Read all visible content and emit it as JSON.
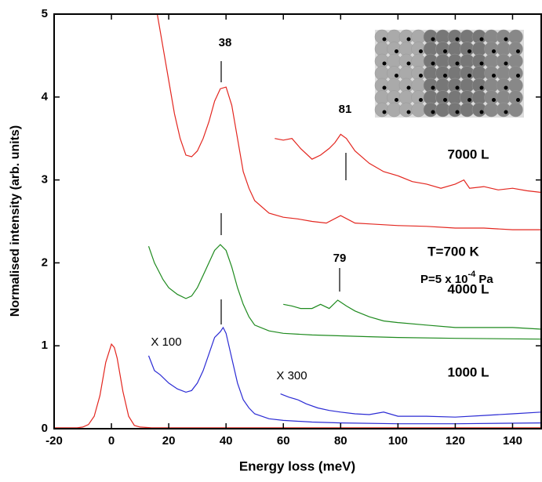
{
  "chart_data": {
    "type": "line",
    "xlabel": "Energy loss (meV)",
    "ylabel": "Normalised intensity (arb. units)",
    "xlim": [
      -20,
      150
    ],
    "ylim": [
      0,
      5
    ],
    "xticks": [
      -20,
      0,
      20,
      40,
      60,
      80,
      100,
      120,
      140
    ],
    "yticks": [
      0,
      1,
      2,
      3,
      4,
      5
    ],
    "series": [
      {
        "color": "#e3261f",
        "x": [
          -20,
          -12,
          -10,
          -8,
          -6,
          -4,
          -2,
          0,
          1,
          2,
          4,
          6,
          8,
          10,
          14,
          30,
          60,
          100,
          150
        ],
        "values": [
          0.01,
          0.01,
          0.02,
          0.05,
          0.15,
          0.4,
          0.8,
          1.02,
          0.98,
          0.85,
          0.45,
          0.15,
          0.04,
          0.02,
          0.01,
          0.01,
          0.01,
          0.01,
          0.01
        ]
      },
      {
        "color": "#e3261f",
        "x": [
          16,
          18,
          20,
          22,
          24,
          26,
          28,
          30,
          32,
          34,
          36,
          38,
          40,
          42,
          44,
          46,
          48,
          50,
          55,
          60,
          65,
          70,
          75,
          80,
          85,
          90,
          100,
          110,
          120,
          130,
          140,
          150
        ],
        "values": [
          5,
          4.6,
          4.2,
          3.8,
          3.5,
          3.3,
          3.28,
          3.35,
          3.5,
          3.7,
          3.95,
          4.1,
          4.12,
          3.9,
          3.5,
          3.1,
          2.9,
          2.75,
          2.6,
          2.55,
          2.53,
          2.5,
          2.48,
          2.57,
          2.48,
          2.47,
          2.45,
          2.44,
          2.42,
          2.42,
          2.4,
          2.4
        ]
      },
      {
        "color": "#e3261f",
        "x": [
          57,
          60,
          63,
          66,
          70,
          73,
          76,
          78,
          80,
          82,
          85,
          90,
          95,
          100,
          105,
          110,
          115,
          120,
          123,
          125,
          130,
          135,
          140,
          145,
          150
        ],
        "values": [
          3.5,
          3.48,
          3.5,
          3.38,
          3.25,
          3.3,
          3.38,
          3.45,
          3.55,
          3.5,
          3.35,
          3.2,
          3.1,
          3.05,
          2.98,
          2.95,
          2.9,
          2.95,
          3.0,
          2.9,
          2.92,
          2.88,
          2.9,
          2.87,
          2.85
        ]
      },
      {
        "color": "#1e8a1e",
        "x": [
          13,
          15,
          18,
          20,
          23,
          26,
          28,
          30,
          32,
          34,
          36,
          38,
          40,
          42,
          44,
          46,
          48,
          50,
          55,
          60,
          70,
          80,
          90,
          100,
          120,
          150
        ],
        "values": [
          2.2,
          2.0,
          1.8,
          1.7,
          1.62,
          1.57,
          1.6,
          1.7,
          1.85,
          2.0,
          2.15,
          2.22,
          2.15,
          1.95,
          1.7,
          1.5,
          1.35,
          1.25,
          1.18,
          1.15,
          1.13,
          1.12,
          1.11,
          1.1,
          1.09,
          1.08
        ]
      },
      {
        "color": "#1e8a1e",
        "x": [
          60,
          63,
          66,
          70,
          73,
          76,
          79,
          82,
          85,
          90,
          95,
          100,
          110,
          120,
          130,
          140,
          150
        ],
        "values": [
          1.5,
          1.48,
          1.45,
          1.45,
          1.5,
          1.45,
          1.55,
          1.48,
          1.42,
          1.35,
          1.3,
          1.28,
          1.25,
          1.22,
          1.22,
          1.22,
          1.2
        ]
      },
      {
        "color": "#2b2bd4",
        "x": [
          13,
          15,
          17,
          20,
          23,
          26,
          28,
          30,
          32,
          34,
          36,
          38,
          39,
          40,
          42,
          44,
          46,
          48,
          50,
          55,
          60,
          70,
          80,
          100,
          120,
          150
        ],
        "values": [
          0.88,
          0.7,
          0.65,
          0.55,
          0.48,
          0.44,
          0.46,
          0.55,
          0.7,
          0.9,
          1.1,
          1.17,
          1.22,
          1.15,
          0.85,
          0.55,
          0.35,
          0.25,
          0.18,
          0.12,
          0.1,
          0.08,
          0.07,
          0.06,
          0.06,
          0.07
        ]
      },
      {
        "color": "#2b2bd4",
        "x": [
          59,
          62,
          65,
          68,
          72,
          76,
          80,
          85,
          90,
          95,
          100,
          110,
          120,
          130,
          140,
          150
        ],
        "values": [
          0.42,
          0.38,
          0.35,
          0.3,
          0.25,
          0.22,
          0.2,
          0.18,
          0.17,
          0.2,
          0.15,
          0.15,
          0.14,
          0.16,
          0.18,
          0.2
        ]
      }
    ],
    "annotations": [
      "38",
      "81",
      "79",
      "X 100",
      "X 300",
      "7000 L",
      "4000 L",
      "1000 L",
      "T=700 K"
    ],
    "pressure_label": {
      "text": "P=5 x 10",
      "sup": "-4",
      "after": " Pa"
    }
  }
}
